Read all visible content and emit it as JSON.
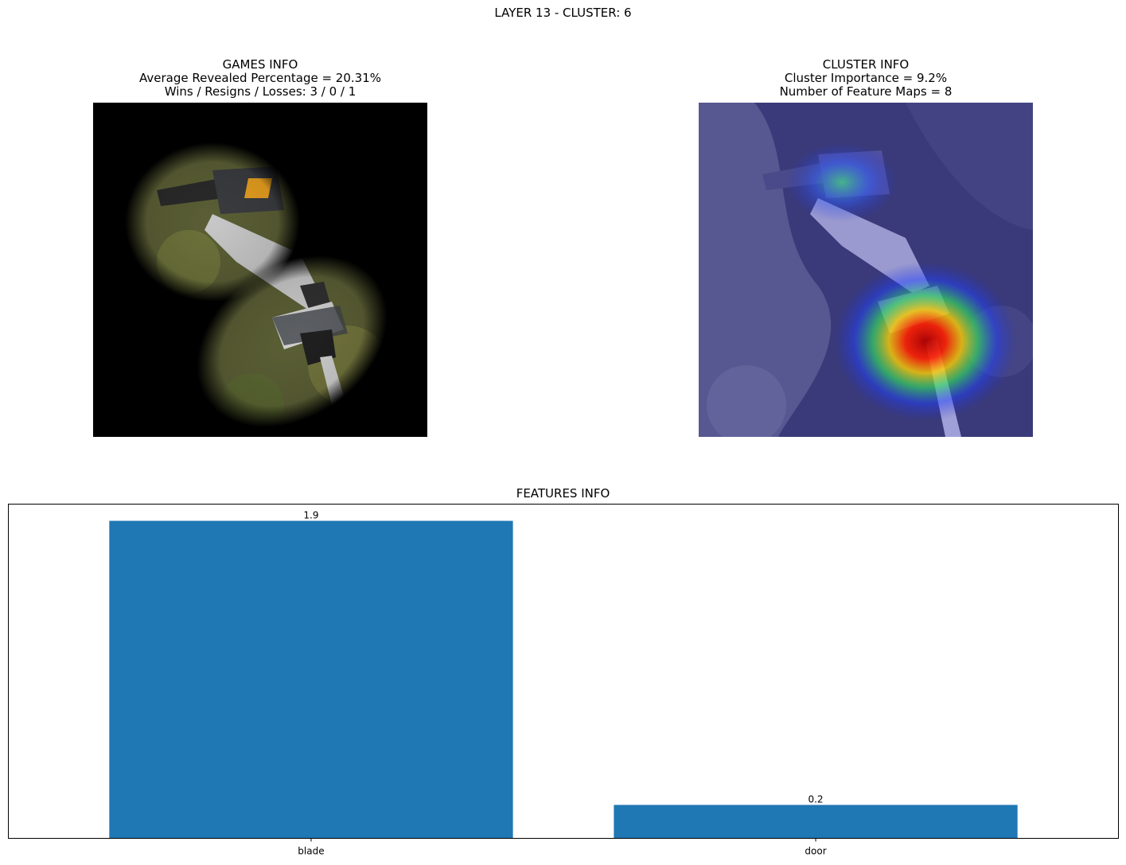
{
  "figure": {
    "suptitle": "LAYER 13 - CLUSTER: 6"
  },
  "games_panel": {
    "title_lines": [
      "GAMES INFO",
      "Average Revealed Percentage = 20.31%",
      "Wins / Resigns / Losses: 3 / 0 / 1"
    ]
  },
  "cluster_panel": {
    "title_lines": [
      "CLUSTER INFO",
      "Cluster Importance = 9.2%",
      "Number of Feature Maps = 8"
    ]
  },
  "features_panel": {
    "title": "FEATURES INFO"
  },
  "colors": {
    "bar": "#1f77b4",
    "heat_hot": "#cc0000",
    "overlay_blue": "#3a3a9a"
  },
  "chart_data": {
    "type": "bar",
    "title": "FEATURES INFO",
    "categories": [
      "blade",
      "door"
    ],
    "values": [
      1.9,
      0.2
    ],
    "data_labels": [
      "1.9",
      "0.2"
    ],
    "xlabel": "",
    "ylabel": "",
    "ylim": [
      0,
      2.0
    ],
    "yticks_visible": false,
    "grid": false
  }
}
